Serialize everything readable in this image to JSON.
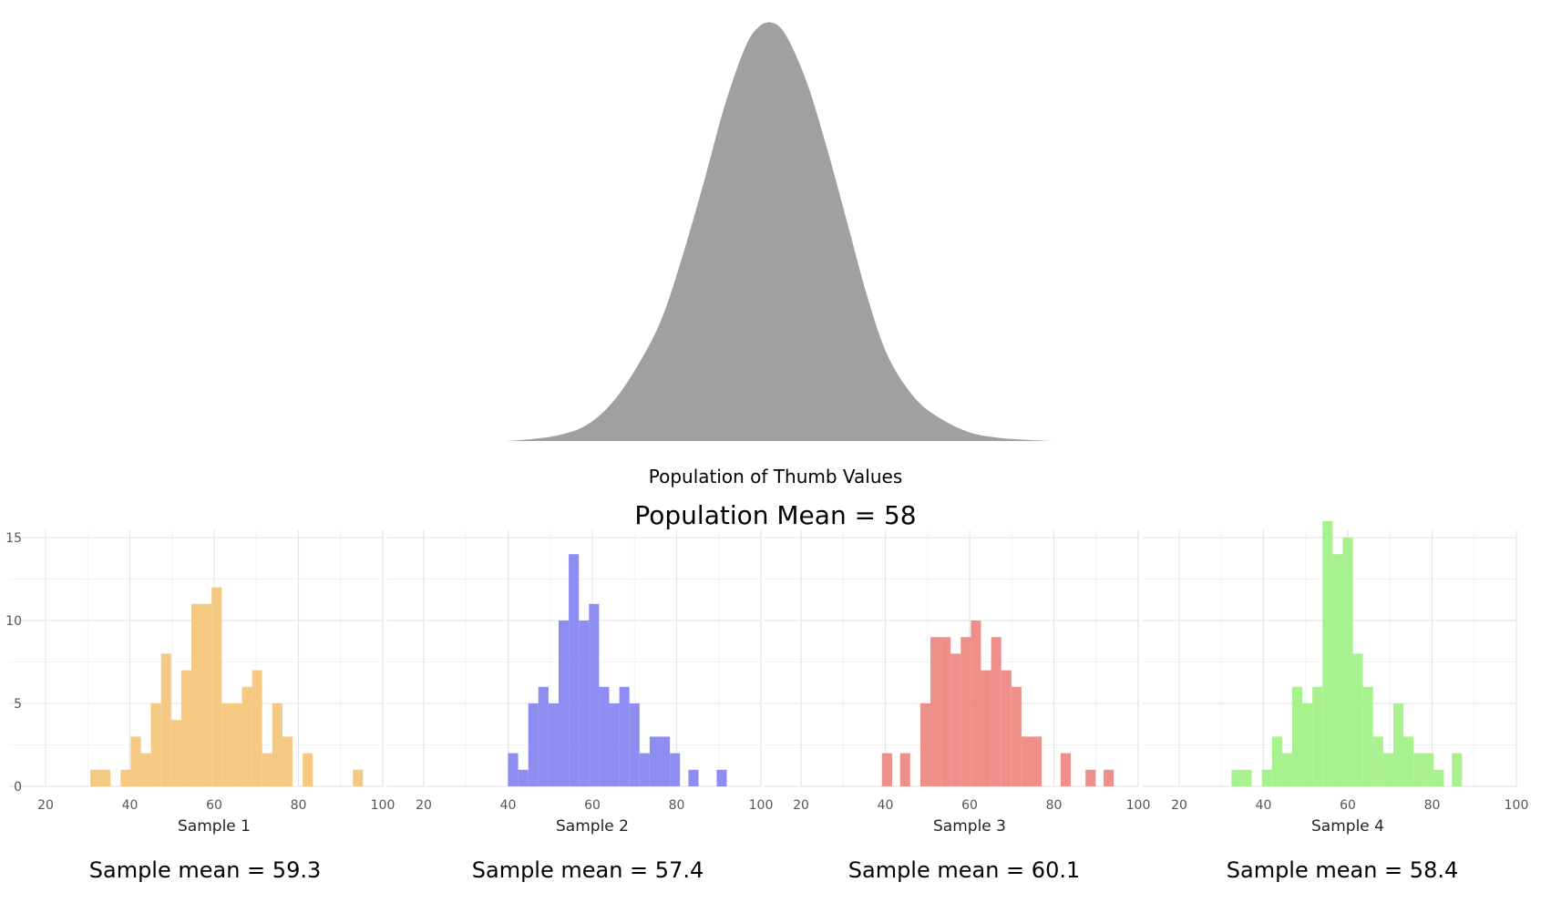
{
  "population": {
    "xlabel": "Population of Thumb Values",
    "mean_label": "Population Mean = 58",
    "color": "#a0a0a0"
  },
  "chart_data": [
    {
      "type": "area",
      "title": "",
      "xlabel": "Population of Thumb Values",
      "x": [
        20,
        24,
        28,
        32,
        36,
        40,
        43,
        46,
        49,
        52,
        55,
        57,
        59,
        61,
        64,
        67,
        70,
        73,
        76,
        80,
        84,
        88,
        92,
        96,
        100
      ],
      "y": [
        0,
        0.005,
        0.015,
        0.04,
        0.1,
        0.2,
        0.3,
        0.45,
        0.62,
        0.8,
        0.94,
        0.99,
        1.0,
        0.97,
        0.86,
        0.7,
        0.52,
        0.34,
        0.2,
        0.1,
        0.05,
        0.02,
        0.008,
        0.003,
        0
      ],
      "xlim": [
        20,
        100
      ],
      "grid": false,
      "color": "#a0a0a0"
    },
    {
      "type": "bar",
      "title": "",
      "xlabel": "Sample 1",
      "bin_width": 2.4,
      "x": [
        30.6,
        33,
        37.8,
        40.2,
        42.6,
        45,
        47.4,
        49.8,
        52.2,
        54.6,
        57,
        59.4,
        61.8,
        64.2,
        66.6,
        69,
        71.4,
        73.8,
        76.2,
        81,
        92.9
      ],
      "values": [
        1,
        1,
        1,
        3,
        2,
        5,
        8,
        4,
        7,
        11,
        11,
        12,
        5,
        5,
        6,
        7,
        2,
        5,
        3,
        2,
        1
      ],
      "xlim": [
        20,
        100
      ],
      "ylim": [
        0,
        15
      ],
      "xticks": [
        20,
        40,
        60,
        80,
        100
      ],
      "yticks": [
        0,
        5,
        10,
        15
      ],
      "grid": true,
      "color": "#f5c982",
      "mean_label": "Sample mean = 59.3"
    },
    {
      "type": "bar",
      "title": "",
      "xlabel": "Sample 2",
      "bin_width": 2.4,
      "x": [
        40,
        42.4,
        44.8,
        47.2,
        49.6,
        52,
        54.4,
        56.8,
        59.2,
        61.6,
        64,
        66.4,
        68.8,
        71.2,
        73.6,
        76,
        78.4,
        82.8,
        89.5
      ],
      "values": [
        2,
        1,
        5,
        6,
        5,
        10,
        14,
        10,
        11,
        6,
        5,
        6,
        5,
        2,
        3,
        3,
        2,
        1,
        1
      ],
      "xlim": [
        20,
        100
      ],
      "ylim": [
        0,
        15
      ],
      "xticks": [
        20,
        40,
        60,
        80,
        100
      ],
      "yticks": [
        0,
        5,
        10,
        15
      ],
      "grid": true,
      "color": "#8e8ef2",
      "mean_label": "Sample mean = 57.4"
    },
    {
      "type": "bar",
      "title": "",
      "xlabel": "Sample 3",
      "bin_width": 2.4,
      "x": [
        39.2,
        43.5,
        48.3,
        50.7,
        53.1,
        55.5,
        57.9,
        60.3,
        62.7,
        65.1,
        67.5,
        69.9,
        72.3,
        74.7,
        81.6,
        87.5,
        91.8
      ],
      "values": [
        2,
        2,
        5,
        9,
        9,
        8,
        9,
        10,
        7,
        9,
        7,
        6,
        3,
        3,
        2,
        1,
        1
      ],
      "xlim": [
        20,
        100
      ],
      "ylim": [
        0,
        15
      ],
      "xticks": [
        20,
        40,
        60,
        80,
        100
      ],
      "yticks": [
        0,
        5,
        10,
        15
      ],
      "grid": true,
      "color": "#ef8f8a",
      "mean_label": "Sample mean = 60.1"
    },
    {
      "type": "bar",
      "title": "",
      "xlabel": "Sample 4",
      "bin_width": 2.4,
      "x": [
        32.4,
        34.8,
        39.6,
        42,
        44.4,
        46.8,
        49.2,
        51.6,
        54,
        56.4,
        58.8,
        61.2,
        63.6,
        66,
        68.4,
        70.8,
        73.2,
        75.6,
        78,
        80.4,
        84.7
      ],
      "values": [
        1,
        1,
        1,
        3,
        2,
        6,
        5,
        6,
        16,
        14,
        15,
        8,
        6,
        3,
        2,
        5,
        3,
        2,
        2,
        1,
        2
      ],
      "xlim": [
        20,
        100
      ],
      "ylim": [
        0,
        15
      ],
      "xticks": [
        20,
        40,
        60,
        80,
        100
      ],
      "yticks": [
        0,
        5,
        10,
        15
      ],
      "grid": true,
      "color": "#a7f28e",
      "mean_label": "Sample mean = 58.4"
    }
  ]
}
